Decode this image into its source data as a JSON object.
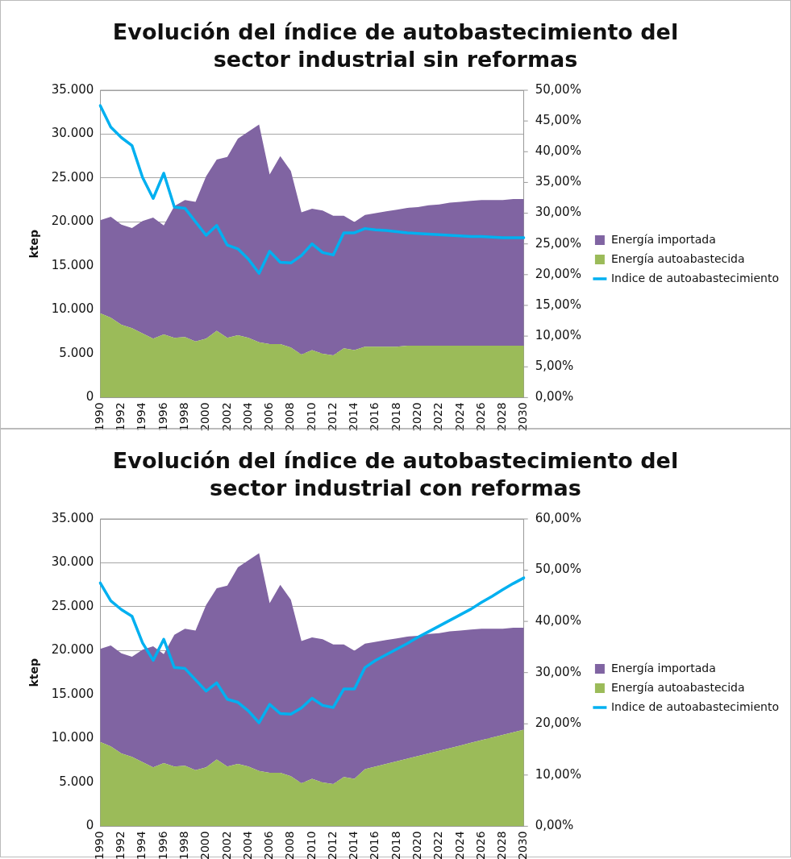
{
  "chart_data": [
    {
      "type": "area",
      "title": "Evolución del índice de autobastecimiento del sector industrial sin reformas",
      "ylabel": "ktep",
      "categories": [
        "1990",
        null,
        "1992",
        null,
        "1994",
        null,
        "1996",
        null,
        "1998",
        null,
        "2000",
        null,
        "2002",
        null,
        "2004",
        null,
        "2006",
        null,
        "2008",
        null,
        "2010",
        null,
        "2012",
        null,
        "2014",
        null,
        "2016",
        null,
        "2018",
        null,
        "2020",
        null,
        "2022",
        null,
        "2024",
        null,
        "2026",
        null,
        "2028",
        null,
        "2030"
      ],
      "series": [
        {
          "name": "Energía autoabastecida",
          "color": "#9bbb59",
          "values": [
            9600,
            9100,
            8300,
            7900,
            7300,
            6700,
            7200,
            6800,
            6900,
            6400,
            6700,
            7600,
            6800,
            7100,
            6800,
            6300,
            6100,
            6100,
            5700,
            4900,
            5400,
            5000,
            4800,
            5600,
            5400,
            5800,
            5800,
            5800,
            5800,
            5900,
            5900,
            5900,
            5900,
            5900,
            5900,
            5900,
            5900,
            5900,
            5900,
            5900,
            5900
          ]
        },
        {
          "name": "Energía importada",
          "color": "#8064a2",
          "values": [
            10600,
            11500,
            11400,
            11400,
            12800,
            13800,
            12400,
            15000,
            15600,
            15900,
            18500,
            19500,
            20600,
            22400,
            23500,
            24800,
            19300,
            21400,
            20100,
            16200,
            16100,
            16300,
            15900,
            15100,
            14600,
            15000,
            15200,
            15400,
            15600,
            15700,
            15800,
            16000,
            16100,
            16300,
            16400,
            16500,
            16600,
            16600,
            16600,
            16700,
            16700
          ]
        },
        {
          "name": "Indice de autoabastecimiento",
          "type": "line",
          "axis": "y2",
          "color": "#00b0f0",
          "values": [
            47.5,
            44,
            42.3,
            41,
            35.8,
            32.4,
            36.5,
            31,
            30.8,
            28.6,
            26.4,
            28,
            24.8,
            24.2,
            22.5,
            20.2,
            23.8,
            22,
            21.9,
            23.1,
            25,
            23.6,
            23.2,
            26.8,
            26.8,
            27.5,
            27.3,
            27.2,
            27,
            26.8,
            26.7,
            26.6,
            26.5,
            26.4,
            26.3,
            26.2,
            26.2,
            26.1,
            26,
            26,
            26
          ]
        }
      ],
      "stacked": true,
      "ylim": [
        0,
        35000
      ],
      "yticks": [
        0,
        {
          "value": 5000,
          "label": "5.000"
        },
        {
          "value": 10000,
          "label": "10.000"
        },
        {
          "value": 15000,
          "label": "15.000"
        },
        {
          "value": 20000,
          "label": "20.000"
        },
        {
          "value": 25000,
          "label": "25.000"
        },
        {
          "value": 30000,
          "label": "30.000"
        },
        {
          "value": 35000,
          "label": "35.000"
        }
      ],
      "y2lim": [
        0,
        50
      ],
      "y2ticks": [
        {
          "value": 0,
          "label": "0,00%"
        },
        {
          "value": 5,
          "label": "5,00%"
        },
        {
          "value": 10,
          "label": "10,00%"
        },
        {
          "value": 15,
          "label": "15,00%"
        },
        {
          "value": 20,
          "label": "20,00%"
        },
        {
          "value": 25,
          "label": "25,00%"
        },
        {
          "value": 30,
          "label": "30,00%"
        },
        {
          "value": 35,
          "label": "35,00%"
        },
        {
          "value": 40,
          "label": "40,00%"
        },
        {
          "value": 45,
          "label": "45,00%"
        },
        {
          "value": 50,
          "label": "50,00%"
        }
      ],
      "grid": "y",
      "legend": "right",
      "marker": "none"
    },
    {
      "type": "area",
      "title": "Evolución del índice de autobastecimiento del sector industrial con reformas",
      "ylabel": "ktep",
      "categories": [
        "1990",
        null,
        "1992",
        null,
        "1994",
        null,
        "1996",
        null,
        "1998",
        null,
        "2000",
        null,
        "2002",
        null,
        "2004",
        null,
        "2006",
        null,
        "2008",
        null,
        "2010",
        null,
        "2012",
        null,
        "2014",
        null,
        "2016",
        null,
        "2018",
        null,
        "2020",
        null,
        "2022",
        null,
        "2024",
        null,
        "2026",
        null,
        "2028",
        null,
        "2030"
      ],
      "series": [
        {
          "name": "Energía autoabastecida",
          "color": "#9bbb59",
          "values": [
            9600,
            9100,
            8300,
            7900,
            7300,
            6700,
            7200,
            6800,
            6900,
            6400,
            6700,
            7600,
            6800,
            7100,
            6800,
            6300,
            6100,
            6100,
            5700,
            4900,
            5400,
            5000,
            4800,
            5600,
            5400,
            6500,
            6800,
            7100,
            7400,
            7700,
            8000,
            8300,
            8600,
            8900,
            9200,
            9500,
            9800,
            10100,
            10400,
            10700,
            11000
          ]
        },
        {
          "name": "Energía importada",
          "color": "#8064a2",
          "values": [
            10600,
            11500,
            11400,
            11400,
            12800,
            13800,
            12400,
            15000,
            15600,
            15900,
            18500,
            19500,
            20600,
            22400,
            23500,
            24800,
            19300,
            21400,
            20100,
            16200,
            16100,
            16300,
            15900,
            15100,
            14600,
            14300,
            14200,
            14100,
            14000,
            13900,
            13700,
            13600,
            13400,
            13300,
            13100,
            12900,
            12700,
            12400,
            12100,
            11900,
            11600
          ]
        },
        {
          "name": "Indice de autoabastecimiento",
          "type": "line",
          "axis": "y2",
          "color": "#00b0f0",
          "values": [
            47.5,
            44,
            42.3,
            41,
            35.8,
            32.4,
            36.5,
            31,
            30.8,
            28.6,
            26.4,
            28,
            24.8,
            24.2,
            22.5,
            20.2,
            23.8,
            22,
            21.9,
            23.1,
            25,
            23.6,
            23.2,
            26.8,
            26.8,
            31,
            32.4,
            33.5,
            34.6,
            35.7,
            36.9,
            38,
            39.1,
            40.2,
            41.3,
            42.4,
            43.7,
            44.9,
            46.2,
            47.4,
            48.5
          ]
        }
      ],
      "stacked": true,
      "ylim": [
        0,
        35000
      ],
      "yticks": [
        0,
        {
          "value": 5000,
          "label": "5.000"
        },
        {
          "value": 10000,
          "label": "10.000"
        },
        {
          "value": 15000,
          "label": "15.000"
        },
        {
          "value": 20000,
          "label": "20.000"
        },
        {
          "value": 25000,
          "label": "25.000"
        },
        {
          "value": 30000,
          "label": "30.000"
        },
        {
          "value": 35000,
          "label": "35.000"
        }
      ],
      "y2lim": [
        0,
        60
      ],
      "y2ticks": [
        {
          "value": 0,
          "label": "0,00%"
        },
        {
          "value": 10,
          "label": "10,00%"
        },
        {
          "value": 20,
          "label": "20,00%"
        },
        {
          "value": 30,
          "label": "30,00%"
        },
        {
          "value": 40,
          "label": "40,00%"
        },
        {
          "value": 50,
          "label": "50,00%"
        },
        {
          "value": 60,
          "label": "60,00%"
        }
      ],
      "grid": "y",
      "legend": "right",
      "marker": "none"
    }
  ]
}
